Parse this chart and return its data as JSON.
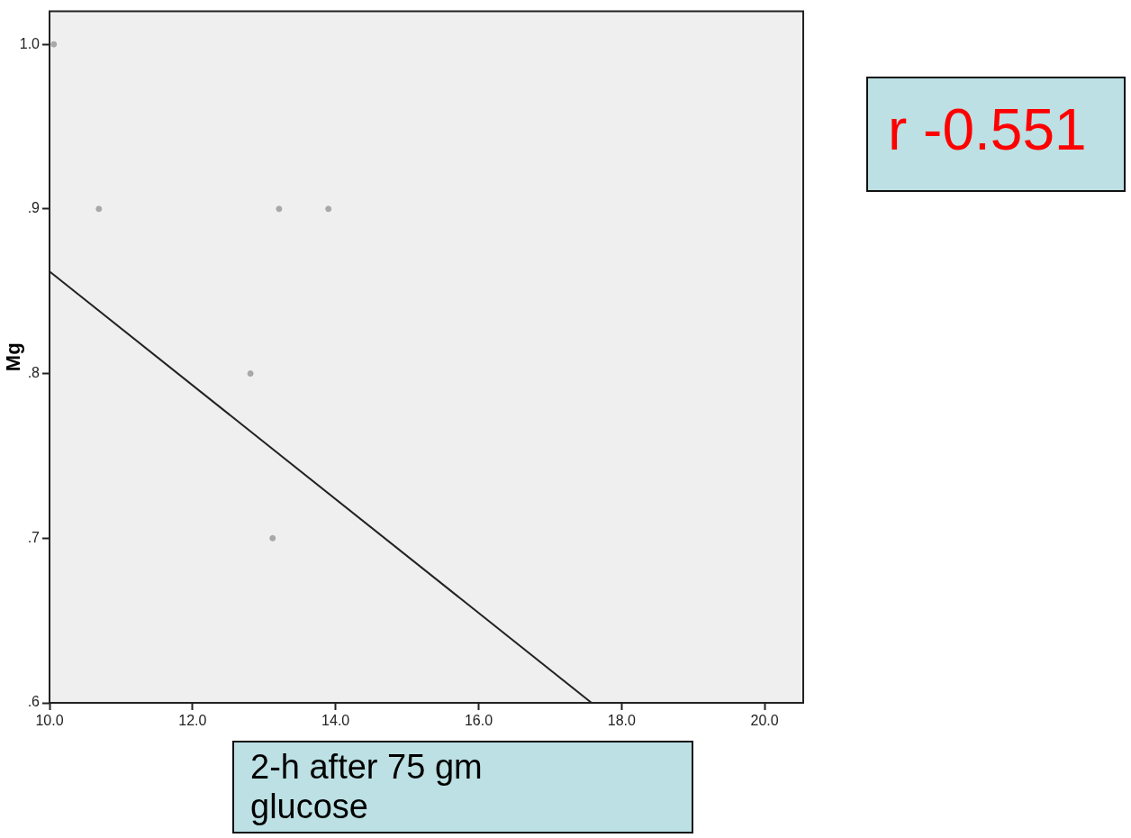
{
  "chart_data": {
    "type": "scatter",
    "xlabel": "2-h after 75 gm glucose",
    "ylabel": "Mg",
    "xlim": [
      10,
      20.54
    ],
    "ylim": [
      0.6,
      1.02
    ],
    "xticks": [
      {
        "value": 10,
        "label": "10.0"
      },
      {
        "value": 12,
        "label": "12.0"
      },
      {
        "value": 14,
        "label": "14.0"
      },
      {
        "value": 16,
        "label": "16.0"
      },
      {
        "value": 18,
        "label": "18.0"
      },
      {
        "value": 20,
        "label": "20.0"
      }
    ],
    "yticks": [
      {
        "value": 0.6,
        "label": ".6"
      },
      {
        "value": 0.7,
        "label": ".7"
      },
      {
        "value": 0.8,
        "label": ".8"
      },
      {
        "value": 0.9,
        "label": ".9"
      },
      {
        "value": 1.0,
        "label": "1.0"
      }
    ],
    "grid": false,
    "marker": "circle",
    "series": [
      {
        "type": "scatter",
        "color": "#a8a8a8",
        "x": [
          10.06,
          10.69,
          13.21,
          13.9,
          12.81,
          13.12
        ],
        "values": [
          1.0,
          0.9,
          0.9,
          0.9,
          0.8,
          0.7
        ]
      },
      {
        "type": "line",
        "color": "#222222",
        "marker": "none",
        "x": [
          10,
          17.58
        ],
        "values": [
          0.862,
          0.6
        ]
      }
    ],
    "annotations": [
      "r -0.551"
    ]
  }
}
